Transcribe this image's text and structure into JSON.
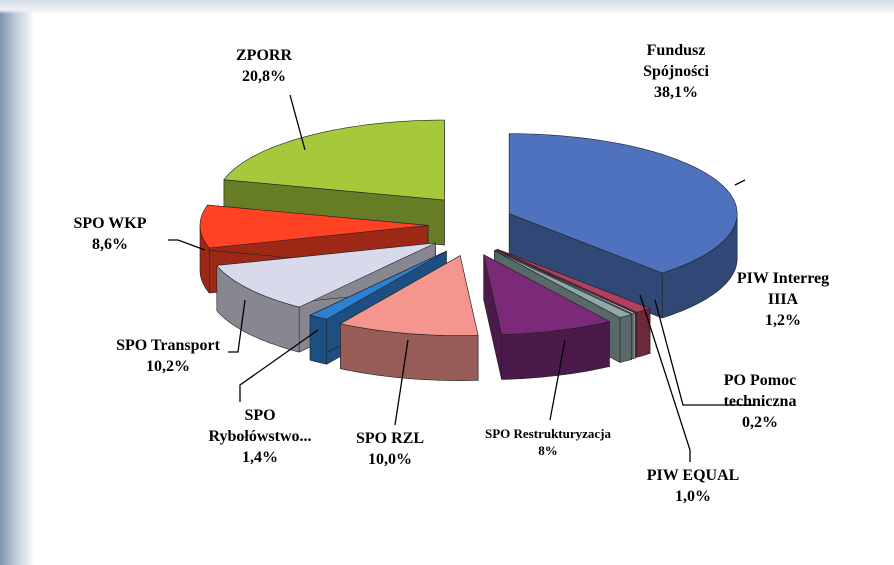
{
  "chart_data": {
    "type": "pie3d",
    "categories": [
      "Fundusz Spójności",
      "PIW Interreg IIIA",
      "PO Pomoc techniczna",
      "PIW EQUAL",
      "SPO Restrukturyzacja",
      "SPO RZL",
      "SPO Rybołówstwo...",
      "SPO Transport",
      "SPO WKP",
      "ZPORR"
    ],
    "values": [
      38.1,
      1.2,
      0.2,
      1.0,
      8,
      10.0,
      1.4,
      10.2,
      8.6,
      20.8
    ],
    "value_labels": [
      "38,1%",
      "1,2%",
      "0,2%",
      "1,0%",
      "8%",
      "10,0%",
      "1,4%",
      "10,2%",
      "8,6%",
      "20,8%"
    ],
    "colors": [
      "#4f72be",
      "#b0405e",
      "#dce7f0",
      "#8fa8a8",
      "#7a2a78",
      "#f4958e",
      "#2e80d2",
      "#d9d9ec",
      "#ff4124",
      "#a5c93b"
    ]
  }
}
